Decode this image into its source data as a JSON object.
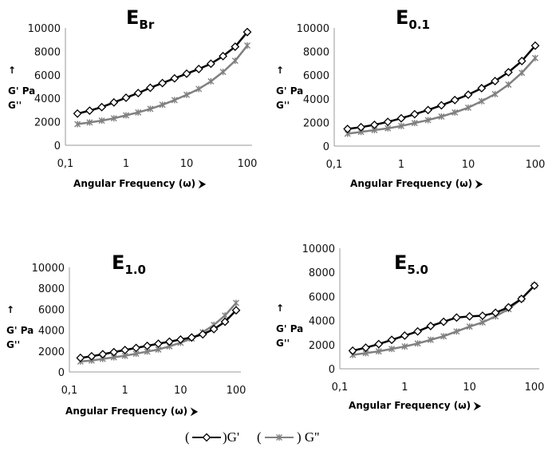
{
  "legend": {
    "g1": "G'",
    "g2": "G''",
    "open": "(",
    "close": ")"
  },
  "colors": {
    "G'": "#000000",
    "G''": "#808080"
  },
  "chart_data": [
    {
      "type": "line",
      "title": "E",
      "title_sub": "Br",
      "xlabel": "Angular Frequency (ω)",
      "ylabel_lines": [
        "↑",
        "G' Pa",
        "G''"
      ],
      "xscale": "log",
      "xlim": [
        0.1,
        100
      ],
      "ylim": [
        0,
        10000
      ],
      "xticks": [
        "0,1",
        "1",
        "10",
        "100"
      ],
      "yticks": [
        "0",
        "2000",
        "4000",
        "6000",
        "8000",
        "10000"
      ],
      "x": [
        0.158,
        0.251,
        0.398,
        0.631,
        1,
        1.585,
        2.512,
        3.981,
        6.31,
        10,
        15.85,
        25.12,
        39.81,
        63.1,
        100
      ],
      "series": [
        {
          "name": "G'",
          "marker": "diamond",
          "values": [
            2700,
            2950,
            3250,
            3650,
            4050,
            4450,
            4900,
            5300,
            5700,
            6100,
            6500,
            6950,
            7600,
            8400,
            9650
          ]
        },
        {
          "name": "G''",
          "marker": "star",
          "values": [
            1800,
            1950,
            2100,
            2300,
            2550,
            2800,
            3100,
            3450,
            3850,
            4300,
            4800,
            5450,
            6250,
            7200,
            8500
          ]
        }
      ]
    },
    {
      "type": "line",
      "title": "E",
      "title_sub": "0.1",
      "xlabel": "Angular Frequency (ω)",
      "ylabel_lines": [
        "↑",
        "G' Pa",
        "G''"
      ],
      "xscale": "log",
      "xlim": [
        0.1,
        100
      ],
      "ylim": [
        0,
        10000
      ],
      "xticks": [
        "0,1",
        "1",
        "10",
        "100"
      ],
      "yticks": [
        "0",
        "2000",
        "4000",
        "6000",
        "8000",
        "10000"
      ],
      "x": [
        0.158,
        0.251,
        0.398,
        0.631,
        1,
        1.585,
        2.512,
        3.981,
        6.31,
        10,
        15.85,
        25.12,
        39.81,
        63.1,
        100
      ],
      "series": [
        {
          "name": "G'",
          "marker": "diamond",
          "values": [
            1450,
            1600,
            1800,
            2050,
            2350,
            2700,
            3050,
            3450,
            3900,
            4350,
            4900,
            5500,
            6250,
            7200,
            8500
          ]
        },
        {
          "name": "G''",
          "marker": "star",
          "values": [
            1050,
            1200,
            1350,
            1500,
            1700,
            1950,
            2200,
            2500,
            2850,
            3250,
            3800,
            4400,
            5200,
            6200,
            7450
          ]
        }
      ]
    },
    {
      "type": "line",
      "title": "E",
      "title_sub": "1.0",
      "xlabel": "Angular Frequency (ω)",
      "ylabel_lines": [
        "↑",
        "G' Pa",
        "G''"
      ],
      "xscale": "log",
      "xlim": [
        0.1,
        100
      ],
      "ylim": [
        0,
        10000
      ],
      "xticks": [
        "0,1",
        "1",
        "10",
        "100"
      ],
      "yticks": [
        "0",
        "2000",
        "4000",
        "6000",
        "8000",
        "10000"
      ],
      "x": [
        0.158,
        0.251,
        0.398,
        0.631,
        1,
        1.585,
        2.512,
        3.981,
        6.31,
        10,
        15.85,
        25.12,
        39.81,
        63.1,
        100
      ],
      "series": [
        {
          "name": "G'",
          "marker": "diamond",
          "values": [
            1350,
            1500,
            1700,
            1900,
            2100,
            2300,
            2500,
            2700,
            2900,
            3100,
            3300,
            3600,
            4100,
            4800,
            5900
          ]
        },
        {
          "name": "G''",
          "marker": "star",
          "values": [
            1000,
            1100,
            1250,
            1400,
            1550,
            1750,
            1950,
            2150,
            2450,
            2800,
            3200,
            3800,
            4500,
            5400,
            6600
          ]
        }
      ]
    },
    {
      "type": "line",
      "title": "E",
      "title_sub": "5.0",
      "xlabel": "Angular Frequency (ω)",
      "ylabel_lines": [
        "↑",
        "G' Pa",
        "G''"
      ],
      "xscale": "log",
      "xlim": [
        0.1,
        100
      ],
      "ylim": [
        0,
        10000
      ],
      "xticks": [
        "0,1",
        "1",
        "10",
        "100"
      ],
      "yticks": [
        "0",
        "2000",
        "4000",
        "6000",
        "8000",
        "10000"
      ],
      "x": [
        0.158,
        0.251,
        0.398,
        0.631,
        1,
        1.585,
        2.512,
        3.981,
        6.31,
        10,
        15.85,
        25.12,
        39.81,
        63.1,
        100
      ],
      "series": [
        {
          "name": "G'",
          "marker": "diamond",
          "values": [
            1500,
            1750,
            2050,
            2400,
            2750,
            3100,
            3550,
            3900,
            4250,
            4350,
            4400,
            4650,
            5100,
            5800,
            6900
          ]
        },
        {
          "name": "G''",
          "marker": "star",
          "values": [
            1150,
            1300,
            1450,
            1650,
            1850,
            2100,
            2400,
            2700,
            3100,
            3500,
            3850,
            4350,
            4950,
            5800,
            6900
          ]
        }
      ]
    }
  ]
}
